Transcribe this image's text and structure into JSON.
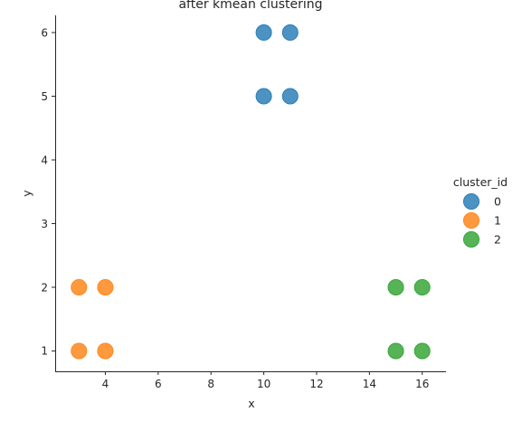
{
  "chart_data": {
    "type": "scatter",
    "title": "after kmean clustering",
    "xlabel": "x",
    "ylabel": "y",
    "xlim": [
      2.1,
      16.9
    ],
    "ylim": [
      0.68,
      6.27
    ],
    "xticks": [
      4,
      6,
      8,
      10,
      12,
      14,
      16
    ],
    "yticks": [
      1,
      2,
      3,
      4,
      5,
      6
    ],
    "grid": false,
    "legend": {
      "title": "cluster_id",
      "placement": "right"
    },
    "series": [
      {
        "name": "0",
        "color": "#1f77b4",
        "points": [
          [
            10,
            6
          ],
          [
            11,
            6
          ],
          [
            10,
            5
          ],
          [
            11,
            5
          ]
        ]
      },
      {
        "name": "1",
        "color": "#ff7f0e",
        "points": [
          [
            3,
            2
          ],
          [
            4,
            2
          ],
          [
            3,
            1
          ],
          [
            4,
            1
          ]
        ]
      },
      {
        "name": "2",
        "color": "#2ca02c",
        "points": [
          [
            15,
            2
          ],
          [
            16,
            2
          ],
          [
            15,
            1
          ],
          [
            16,
            1
          ]
        ]
      }
    ]
  }
}
